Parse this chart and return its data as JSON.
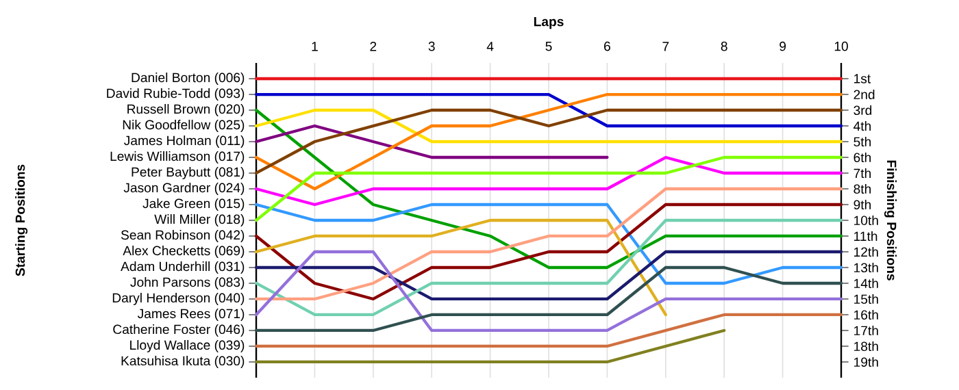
{
  "chart_data": {
    "type": "line",
    "xlabel": "Laps",
    "annotations": [
      "Starting Positions"
    ],
    "y2label": "Finishing Positions",
    "x": [
      0,
      1,
      2,
      3,
      4,
      5,
      6,
      7,
      8,
      9,
      10
    ],
    "xlim": [
      0,
      10
    ],
    "xticks": [
      1,
      2,
      3,
      4,
      5,
      6,
      7,
      8,
      9,
      10
    ],
    "y2lim": [
      20,
      0
    ],
    "y2ticks": [
      {
        "value": 1,
        "label": "1st"
      },
      {
        "value": 2,
        "label": "2nd"
      },
      {
        "value": 3,
        "label": "3rd"
      },
      {
        "value": 4,
        "label": "4th"
      },
      {
        "value": 5,
        "label": "5th"
      },
      {
        "value": 6,
        "label": "6th"
      },
      {
        "value": 7,
        "label": "7th"
      },
      {
        "value": 8,
        "label": "8th"
      },
      {
        "value": 9,
        "label": "9th"
      },
      {
        "value": 10,
        "label": "10th"
      },
      {
        "value": 11,
        "label": "11th"
      },
      {
        "value": 12,
        "label": "12th"
      },
      {
        "value": 13,
        "label": "13th"
      },
      {
        "value": 14,
        "label": "14th"
      },
      {
        "value": 15,
        "label": "15th"
      },
      {
        "value": 16,
        "label": "16th"
      },
      {
        "value": 17,
        "label": "17th"
      },
      {
        "value": 18,
        "label": "18th"
      },
      {
        "value": 19,
        "label": "19th"
      }
    ],
    "grid": "x",
    "marker": "none",
    "line_style": "solid",
    "series": [
      {
        "name": "Daniel Borton (006)",
        "axis": "y2",
        "color": "#e8161c",
        "values": [
          1,
          1,
          1,
          1,
          1,
          1,
          1,
          1,
          1,
          1,
          1
        ]
      },
      {
        "name": "David Rubie-Todd (093)",
        "axis": "y2",
        "color": "#0000cc",
        "values": [
          2,
          2,
          2,
          2,
          2,
          2,
          4,
          4,
          4,
          4,
          4
        ]
      },
      {
        "name": "Russell Brown (020)",
        "axis": "y2",
        "color": "#00a000",
        "values": [
          3,
          6,
          9,
          10,
          11,
          13,
          13,
          11,
          11,
          11,
          11
        ]
      },
      {
        "name": "Nik Goodfellow (025)",
        "axis": "y2",
        "color": "#ffe000",
        "values": [
          4,
          3,
          3,
          5,
          5,
          5,
          5,
          5,
          5,
          5,
          5
        ]
      },
      {
        "name": "James Holman (011)",
        "axis": "y2",
        "color": "#800080",
        "values": [
          5,
          4,
          5,
          6,
          6,
          6,
          6,
          null,
          null,
          null,
          null
        ]
      },
      {
        "name": "Lewis Williamson (017)",
        "axis": "y2",
        "color": "#ff8000",
        "values": [
          6,
          8,
          6,
          4,
          4,
          3,
          2,
          2,
          2,
          2,
          2
        ]
      },
      {
        "name": "Peter Baybutt (081)",
        "axis": "y2",
        "color": "#804000",
        "values": [
          7,
          5,
          4,
          3,
          3,
          4,
          3,
          3,
          3,
          3,
          3
        ]
      },
      {
        "name": "Jason Gardner (024)",
        "axis": "y2",
        "color": "#ff00ff",
        "values": [
          8,
          9,
          8,
          8,
          8,
          8,
          8,
          6,
          7,
          7,
          7
        ]
      },
      {
        "name": "Jake Green (015)",
        "axis": "y2",
        "color": "#3399ff",
        "values": [
          9,
          10,
          10,
          9,
          9,
          9,
          9,
          14,
          14,
          13,
          13
        ]
      },
      {
        "name": "Will Miller (018)",
        "axis": "y2",
        "color": "#80ff00",
        "values": [
          10,
          7,
          7,
          7,
          7,
          7,
          7,
          7,
          6,
          6,
          6
        ]
      },
      {
        "name": "Sean Robinson (042)",
        "axis": "y2",
        "color": "#8b0000",
        "values": [
          11,
          14,
          15,
          13,
          13,
          12,
          12,
          9,
          9,
          9,
          9
        ]
      },
      {
        "name": "Alex Checketts (069)",
        "axis": "y2",
        "color": "#e0b020",
        "values": [
          12,
          11,
          11,
          11,
          10,
          10,
          10,
          16,
          null,
          null,
          null
        ]
      },
      {
        "name": "Adam Underhill (031)",
        "axis": "y2",
        "color": "#1a1a6e",
        "values": [
          13,
          13,
          13,
          15,
          15,
          15,
          15,
          12,
          12,
          12,
          12
        ]
      },
      {
        "name": "John Parsons (083)",
        "axis": "y2",
        "color": "#70d0b0",
        "values": [
          14,
          16,
          16,
          14,
          14,
          14,
          14,
          10,
          10,
          10,
          10
        ]
      },
      {
        "name": "Daryl Henderson (040)",
        "axis": "y2",
        "color": "#ffa080",
        "values": [
          15,
          15,
          14,
          12,
          12,
          11,
          11,
          8,
          8,
          8,
          8
        ]
      },
      {
        "name": "James Rees (071)",
        "axis": "y2",
        "color": "#9370db",
        "values": [
          16,
          12,
          12,
          17,
          17,
          17,
          17,
          15,
          15,
          15,
          15
        ]
      },
      {
        "name": "Catherine Foster (046)",
        "axis": "y2",
        "color": "#305050",
        "values": [
          17,
          17,
          17,
          16,
          16,
          16,
          16,
          13,
          13,
          14,
          14
        ]
      },
      {
        "name": "Lloyd Wallace (039)",
        "axis": "y2",
        "color": "#d07040",
        "values": [
          18,
          18,
          18,
          18,
          18,
          18,
          18,
          17,
          16,
          16,
          16
        ]
      },
      {
        "name": "Katsuhisa Ikuta (030)",
        "axis": "y2",
        "color": "#808020",
        "values": [
          19,
          19,
          19,
          19,
          19,
          19,
          19,
          18,
          17,
          null,
          null
        ]
      }
    ]
  }
}
